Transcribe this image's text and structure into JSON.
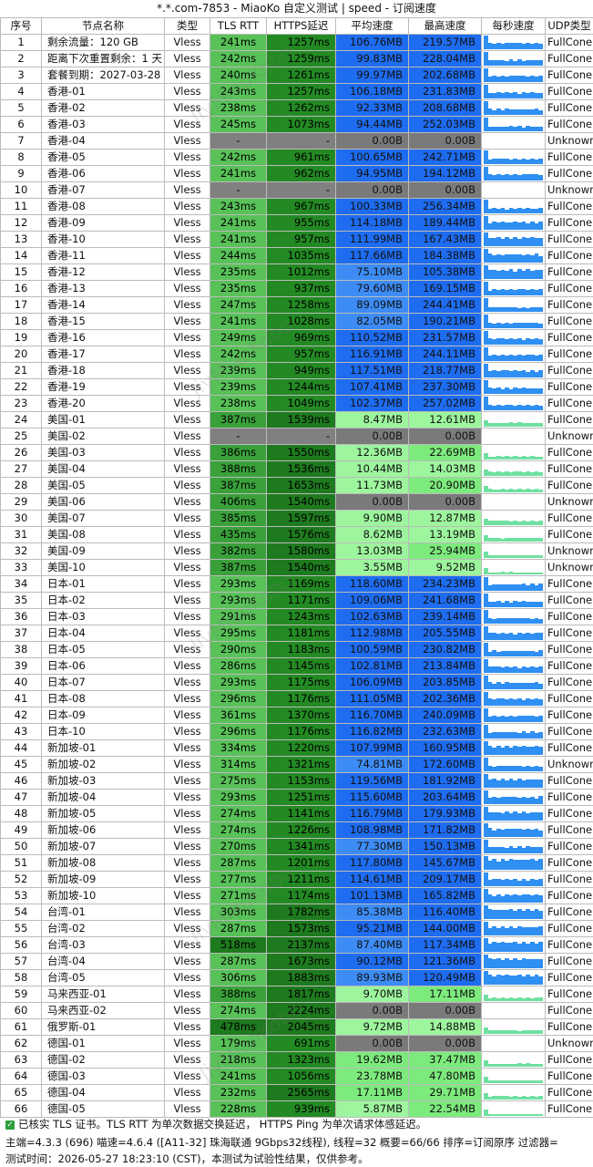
{
  "window": {
    "title": "*.*.com-7853 - MiaoKo 自定义测试 | speed - 订阅速度"
  },
  "columns": [
    "序号",
    "节点名称",
    "类型",
    "TLS RTT",
    "HTTPS延迟",
    "平均速度",
    "最高速度",
    "每秒速度",
    "UDP类型"
  ],
  "rows": [
    [
      "1",
      "剩余流量：120 GB",
      "Vless",
      "241ms",
      "1257ms",
      "106.76MB",
      "219.57MB",
      "FullCone"
    ],
    [
      "2",
      "距离下次重置剩余：1 天",
      "Vless",
      "242ms",
      "1259ms",
      "99.83MB",
      "228.04MB",
      "FullCone"
    ],
    [
      "3",
      "套餐到期：2027-03-28",
      "Vless",
      "240ms",
      "1261ms",
      "99.97MB",
      "202.68MB",
      "FullCone"
    ],
    [
      "4",
      "香港-01",
      "Vless",
      "243ms",
      "1257ms",
      "106.18MB",
      "231.83MB",
      "FullCone"
    ],
    [
      "5",
      "香港-02",
      "Vless",
      "238ms",
      "1262ms",
      "92.33MB",
      "208.68MB",
      "FullCone"
    ],
    [
      "6",
      "香港-03",
      "Vless",
      "245ms",
      "1073ms",
      "94.44MB",
      "252.03MB",
      "FullCone"
    ],
    [
      "7",
      "香港-04",
      "Vless",
      "-",
      "-",
      "0.00B",
      "0.00B",
      "Unknown"
    ],
    [
      "8",
      "香港-05",
      "Vless",
      "242ms",
      "961ms",
      "100.65MB",
      "242.71MB",
      "FullCone"
    ],
    [
      "9",
      "香港-06",
      "Vless",
      "241ms",
      "962ms",
      "94.95MB",
      "194.12MB",
      "FullCone"
    ],
    [
      "10",
      "香港-07",
      "Vless",
      "-",
      "-",
      "0.00B",
      "0.00B",
      "Unknown"
    ],
    [
      "11",
      "香港-08",
      "Vless",
      "243ms",
      "967ms",
      "100.33MB",
      "256.34MB",
      "FullCone"
    ],
    [
      "12",
      "香港-09",
      "Vless",
      "241ms",
      "955ms",
      "114.18MB",
      "189.44MB",
      "FullCone"
    ],
    [
      "13",
      "香港-10",
      "Vless",
      "241ms",
      "957ms",
      "111.99MB",
      "167.43MB",
      "FullCone"
    ],
    [
      "14",
      "香港-11",
      "Vless",
      "244ms",
      "1035ms",
      "117.66MB",
      "184.38MB",
      "FullCone"
    ],
    [
      "15",
      "香港-12",
      "Vless",
      "235ms",
      "1012ms",
      "75.10MB",
      "105.38MB",
      "FullCone"
    ],
    [
      "16",
      "香港-13",
      "Vless",
      "235ms",
      "937ms",
      "79.60MB",
      "169.15MB",
      "FullCone"
    ],
    [
      "17",
      "香港-14",
      "Vless",
      "247ms",
      "1258ms",
      "89.09MB",
      "244.41MB",
      "FullCone"
    ],
    [
      "18",
      "香港-15",
      "Vless",
      "241ms",
      "1028ms",
      "82.05MB",
      "190.21MB",
      "FullCone"
    ],
    [
      "19",
      "香港-16",
      "Vless",
      "249ms",
      "969ms",
      "110.52MB",
      "231.57MB",
      "FullCone"
    ],
    [
      "20",
      "香港-17",
      "Vless",
      "242ms",
      "957ms",
      "116.91MB",
      "244.11MB",
      "FullCone"
    ],
    [
      "21",
      "香港-18",
      "Vless",
      "239ms",
      "949ms",
      "117.51MB",
      "218.77MB",
      "FullCone"
    ],
    [
      "22",
      "香港-19",
      "Vless",
      "239ms",
      "1244ms",
      "107.41MB",
      "237.30MB",
      "FullCone"
    ],
    [
      "23",
      "香港-20",
      "Vless",
      "238ms",
      "1049ms",
      "102.37MB",
      "257.02MB",
      "FullCone"
    ],
    [
      "24",
      "美国-01",
      "Vless",
      "387ms",
      "1539ms",
      "8.47MB",
      "12.61MB",
      "FullCone"
    ],
    [
      "25",
      "美国-02",
      "Vless",
      "-",
      "-",
      "0.00B",
      "0.00B",
      "Unknown"
    ],
    [
      "26",
      "美国-03",
      "Vless",
      "386ms",
      "1550ms",
      "12.36MB",
      "22.69MB",
      "FullCone"
    ],
    [
      "27",
      "美国-04",
      "Vless",
      "388ms",
      "1536ms",
      "10.44MB",
      "14.03MB",
      "FullCone"
    ],
    [
      "28",
      "美国-05",
      "Vless",
      "387ms",
      "1653ms",
      "11.73MB",
      "20.90MB",
      "FullCone"
    ],
    [
      "29",
      "美国-06",
      "Vless",
      "406ms",
      "1540ms",
      "0.00B",
      "0.00B",
      "Unknown"
    ],
    [
      "30",
      "美国-07",
      "Vless",
      "385ms",
      "1597ms",
      "9.90MB",
      "12.87MB",
      "FullCone"
    ],
    [
      "31",
      "美国-08",
      "Vless",
      "435ms",
      "1576ms",
      "8.62MB",
      "13.19MB",
      "FullCone"
    ],
    [
      "32",
      "美国-09",
      "Vless",
      "382ms",
      "1580ms",
      "13.03MB",
      "25.94MB",
      "Unknown"
    ],
    [
      "33",
      "美国-10",
      "Vless",
      "387ms",
      "1540ms",
      "3.55MB",
      "9.52MB",
      "Unknown"
    ],
    [
      "34",
      "日本-01",
      "Vless",
      "293ms",
      "1169ms",
      "118.60MB",
      "234.23MB",
      "FullCone"
    ],
    [
      "35",
      "日本-02",
      "Vless",
      "293ms",
      "1171ms",
      "109.06MB",
      "241.68MB",
      "FullCone"
    ],
    [
      "36",
      "日本-03",
      "Vless",
      "291ms",
      "1243ms",
      "102.63MB",
      "239.14MB",
      "FullCone"
    ],
    [
      "37",
      "日本-04",
      "Vless",
      "295ms",
      "1181ms",
      "112.98MB",
      "205.55MB",
      "FullCone"
    ],
    [
      "38",
      "日本-05",
      "Vless",
      "290ms",
      "1183ms",
      "100.59MB",
      "230.82MB",
      "FullCone"
    ],
    [
      "39",
      "日本-06",
      "Vless",
      "286ms",
      "1145ms",
      "102.81MB",
      "213.84MB",
      "FullCone"
    ],
    [
      "40",
      "日本-07",
      "Vless",
      "293ms",
      "1175ms",
      "106.09MB",
      "203.85MB",
      "FullCone"
    ],
    [
      "41",
      "日本-08",
      "Vless",
      "296ms",
      "1176ms",
      "111.05MB",
      "202.36MB",
      "FullCone"
    ],
    [
      "42",
      "日本-09",
      "Vless",
      "361ms",
      "1370ms",
      "116.70MB",
      "240.09MB",
      "FullCone"
    ],
    [
      "43",
      "日本-10",
      "Vless",
      "296ms",
      "1176ms",
      "116.82MB",
      "232.63MB",
      "FullCone"
    ],
    [
      "44",
      "新加坡-01",
      "Vless",
      "334ms",
      "1220ms",
      "107.99MB",
      "160.95MB",
      "FullCone"
    ],
    [
      "45",
      "新加坡-02",
      "Vless",
      "314ms",
      "1321ms",
      "74.81MB",
      "172.60MB",
      "Unknown"
    ],
    [
      "46",
      "新加坡-03",
      "Vless",
      "275ms",
      "1153ms",
      "119.56MB",
      "181.92MB",
      "FullCone"
    ],
    [
      "47",
      "新加坡-04",
      "Vless",
      "293ms",
      "1251ms",
      "115.60MB",
      "203.64MB",
      "FullCone"
    ],
    [
      "48",
      "新加坡-05",
      "Vless",
      "274ms",
      "1141ms",
      "116.79MB",
      "179.93MB",
      "FullCone"
    ],
    [
      "49",
      "新加坡-06",
      "Vless",
      "274ms",
      "1226ms",
      "108.98MB",
      "171.82MB",
      "FullCone"
    ],
    [
      "50",
      "新加坡-07",
      "Vless",
      "270ms",
      "1341ms",
      "77.30MB",
      "150.13MB",
      "FullCone"
    ],
    [
      "51",
      "新加坡-08",
      "Vless",
      "287ms",
      "1201ms",
      "117.80MB",
      "145.67MB",
      "FullCone"
    ],
    [
      "52",
      "新加坡-09",
      "Vless",
      "277ms",
      "1211ms",
      "114.61MB",
      "209.17MB",
      "FullCone"
    ],
    [
      "53",
      "新加坡-10",
      "Vless",
      "271ms",
      "1174ms",
      "101.13MB",
      "165.82MB",
      "FullCone"
    ],
    [
      "54",
      "台湾-01",
      "Vless",
      "303ms",
      "1782ms",
      "85.38MB",
      "116.40MB",
      "FullCone"
    ],
    [
      "55",
      "台湾-02",
      "Vless",
      "287ms",
      "1573ms",
      "95.21MB",
      "144.00MB",
      "FullCone"
    ],
    [
      "56",
      "台湾-03",
      "Vless",
      "518ms",
      "2137ms",
      "87.40MB",
      "117.34MB",
      "FullCone"
    ],
    [
      "57",
      "台湾-04",
      "Vless",
      "287ms",
      "1673ms",
      "90.12MB",
      "121.36MB",
      "FullCone"
    ],
    [
      "58",
      "台湾-05",
      "Vless",
      "306ms",
      "1883ms",
      "89.93MB",
      "120.49MB",
      "FullCone"
    ],
    [
      "59",
      "马来西亚-01",
      "Vless",
      "388ms",
      "1817ms",
      "9.70MB",
      "17.11MB",
      "FullCone"
    ],
    [
      "60",
      "马来西亚-02",
      "Vless",
      "274ms",
      "2224ms",
      "0.00B",
      "0.00B",
      "FullCone"
    ],
    [
      "61",
      "俄罗斯-01",
      "Vless",
      "478ms",
      "2045ms",
      "9.72MB",
      "14.88MB",
      "FullCone"
    ],
    [
      "62",
      "德国-01",
      "Vless",
      "179ms",
      "691ms",
      "0.00B",
      "0.00B",
      "Unknown"
    ],
    [
      "63",
      "德国-02",
      "Vless",
      "218ms",
      "1323ms",
      "19.62MB",
      "37.47MB",
      "FullCone"
    ],
    [
      "64",
      "德国-03",
      "Vless",
      "241ms",
      "1056ms",
      "23.78MB",
      "47.80MB",
      "FullCone"
    ],
    [
      "65",
      "德国-04",
      "Vless",
      "232ms",
      "2565ms",
      "17.11MB",
      "29.71MB",
      "FullCone"
    ],
    [
      "66",
      "德国-05",
      "Vless",
      "228ms",
      "939ms",
      "5.87MB",
      "22.54MB",
      "FullCone"
    ]
  ],
  "footer": {
    "line1": "已核实 TLS 证书。TLS RTT 为单次数据交换延迟， HTTPS Ping 为单次请求体感延迟。",
    "line2": "主端=4.3.3 (696) 喵速=4.6.4 ([A11-32] 珠海联通 9Gbps32线程), 线程=32 概要=66/66 排序=订阅原序 过滤器=",
    "line3": "测试时间：2026-05-27 18:23:10 (CST)，本测试为试验性结果，仅供参考。"
  },
  "watermark": "JiyMiaoKobo",
  "colors": {
    "tls_green": "#58c158",
    "https_dark": "#1e7a1e",
    "https_mid": "#238a23",
    "fast_blue": "#1e6cf0",
    "mid_blue": "#3d8cf5",
    "slow_green": "#7dea7d",
    "light_green": "#9df59d",
    "zero_gray": "#7a7a7a",
    "na_gray": "#808080",
    "spark_blue": "#2f8ff2",
    "spark_green": "#6fe0a0"
  }
}
